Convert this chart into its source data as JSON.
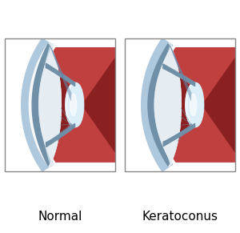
{
  "title_left": "Normal",
  "title_right": "Keratoconus",
  "bg": "#ffffff",
  "red_outer": "#c04040",
  "red_inner": "#8b2020",
  "sclera_white": "#e8ecf0",
  "sclera_white2": "#f5f5f5",
  "blue_limbus": "#7aaac8",
  "blue_limbus2": "#aec8dd",
  "cornea_blue": "#7090a8",
  "cornea_blue2": "#90afc0",
  "cornea_highlight": "#c8dde8",
  "lens_outer": "#c0d8ec",
  "lens_mid": "#dceef8",
  "lens_bright": "#f0f8ff",
  "lens_highlight": "#ffffff",
  "pupil_dark": "#2a3040",
  "zonule": "#6888aa",
  "border": "#888888",
  "fig_w": 3.0,
  "fig_h": 2.91
}
